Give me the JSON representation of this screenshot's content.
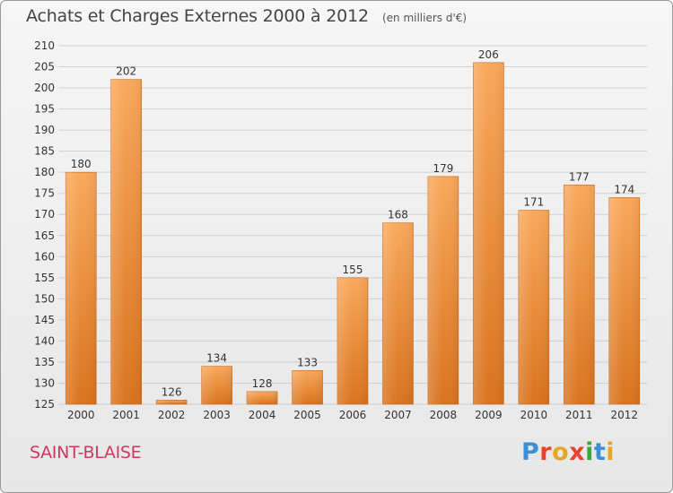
{
  "title": {
    "main": "Achats et Charges Externes 2000 à 2012",
    "unit": "(en milliers d'€)"
  },
  "commune": "SAINT-BLAISE",
  "logo": {
    "text": "Proxiti",
    "letters": [
      {
        "char": "P",
        "color": "#3b8fd6"
      },
      {
        "char": "r",
        "color": "#e8442d"
      },
      {
        "char": "o",
        "color": "#e7a722"
      },
      {
        "char": "x",
        "color": "#e8442d"
      },
      {
        "char": "i",
        "color": "#3aa83a"
      },
      {
        "char": "t",
        "color": "#3b8fd6"
      },
      {
        "char": "i",
        "color": "#e7a722"
      }
    ]
  },
  "colors": {
    "bar_top": "#f9a85a",
    "bar_bottom": "#d9731e",
    "grid": "#cfcfcf",
    "axis_text": "#333333",
    "commune": "#cf3a5e"
  },
  "chart_data": {
    "type": "bar",
    "categories": [
      "2000",
      "2001",
      "2002",
      "2003",
      "2004",
      "2005",
      "2006",
      "2007",
      "2008",
      "2009",
      "2010",
      "2011",
      "2012"
    ],
    "values": [
      180,
      202,
      126,
      134,
      128,
      133,
      155,
      168,
      179,
      206,
      171,
      177,
      174
    ],
    "data_labels": [
      "180",
      "202",
      "126",
      "134",
      "128",
      "133",
      "155",
      "168",
      "179",
      "206",
      "171",
      "177",
      "174"
    ],
    "title": "Achats et Charges Externes 2000 à 2012",
    "xlabel": "",
    "ylabel": "",
    "ylim": [
      125,
      210
    ],
    "yticks": [
      125,
      130,
      135,
      140,
      145,
      150,
      155,
      160,
      165,
      170,
      175,
      180,
      185,
      190,
      195,
      200,
      205,
      210
    ],
    "grid": true,
    "legend": "none"
  }
}
